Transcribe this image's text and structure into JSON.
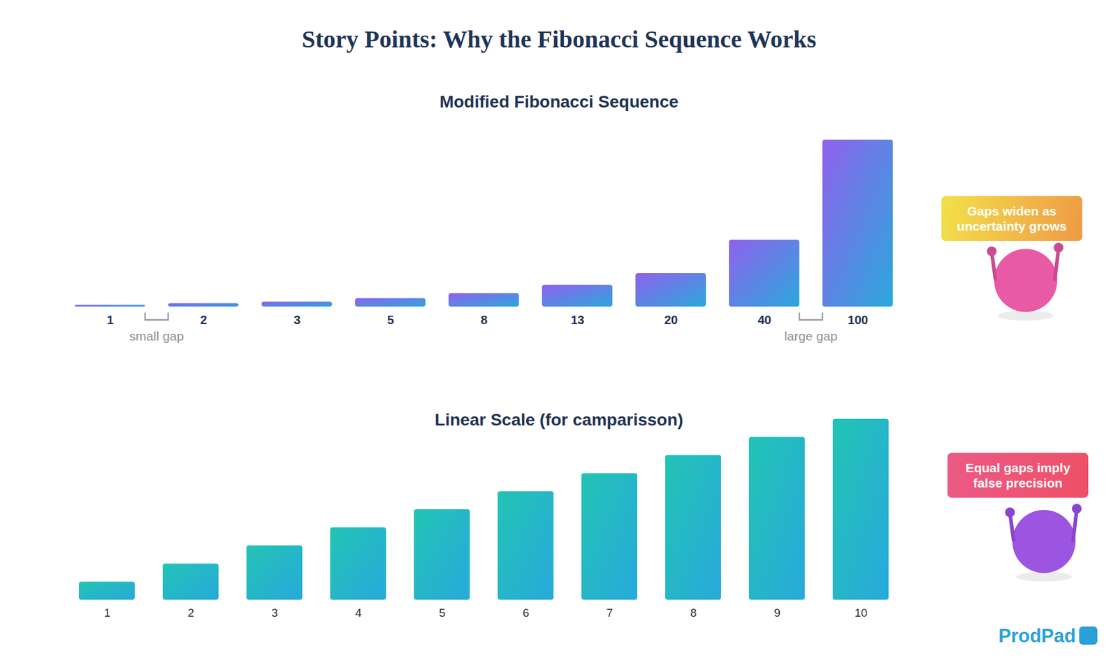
{
  "title": "Story Points: Why the Fibonacci Sequence Works",
  "brand": "ProdPad",
  "chart_data": [
    {
      "type": "bar",
      "title": "Modified Fibonacci Sequence",
      "categories": [
        "1",
        "2",
        "3",
        "5",
        "8",
        "13",
        "20",
        "40",
        "100"
      ],
      "values": [
        1,
        2,
        3,
        5,
        8,
        13,
        20,
        40,
        100
      ],
      "color": "#9061ec",
      "ylim": [
        0,
        100
      ],
      "tick_labels": "x",
      "annotations": [
        {
          "text": "small gap",
          "between": [
            "1",
            "2"
          ]
        },
        {
          "text": "large gap",
          "between": [
            "40",
            "100"
          ]
        }
      ],
      "callout": "Gaps widen as uncertainty grows"
    },
    {
      "type": "bar",
      "title": "Linear Scale (for camparisson)",
      "categories": [
        "1",
        "2",
        "3",
        "4",
        "5",
        "6",
        "7",
        "8",
        "9",
        "10"
      ],
      "values": [
        1,
        2,
        3,
        4,
        5,
        6,
        7,
        8,
        9,
        10
      ],
      "color": "#22c4b4",
      "ylim": [
        0,
        10
      ],
      "tick_labels": "x",
      "callout": "Equal gaps imply false precision"
    }
  ]
}
